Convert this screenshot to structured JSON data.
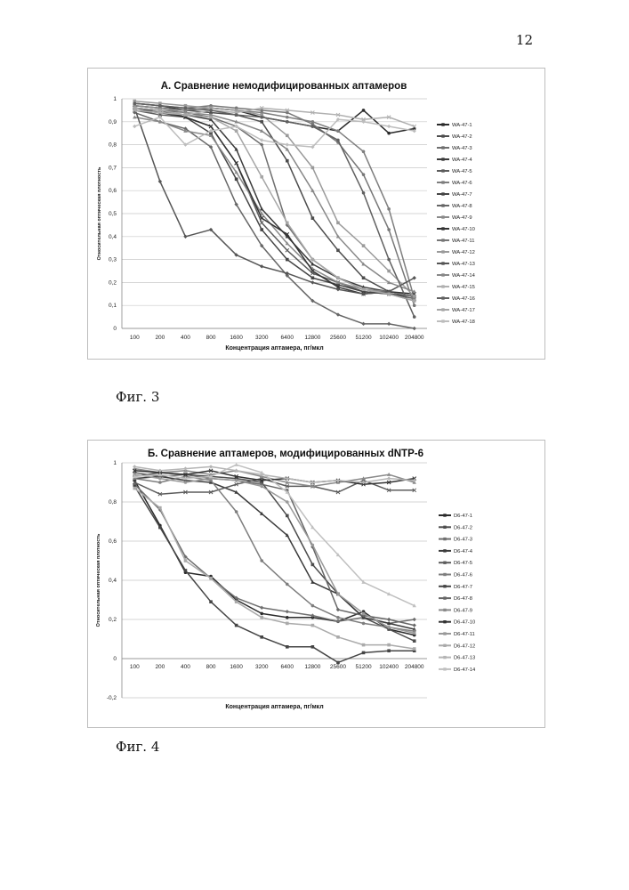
{
  "page_number": "12",
  "figures": [
    {
      "caption": "Фиг. 3"
    },
    {
      "caption": "Фиг. 4"
    }
  ],
  "chart_data": [
    {
      "type": "line",
      "title": "А. Сравнение немодифицированных аптамеров",
      "xlabel": "Концентрация аптамера, пг/мкл",
      "ylabel": "Относительная оптическая плотность",
      "x_scale": "log2",
      "ylim": [
        0,
        1
      ],
      "yticks": [
        "0",
        "0,1",
        "0,2",
        "0,3",
        "0,4",
        "0,5",
        "0,6",
        "0,7",
        "0,8",
        "0,9",
        "1"
      ],
      "ytick_values": [
        0,
        0.1,
        0.2,
        0.3,
        0.4,
        0.5,
        0.6,
        0.7,
        0.8,
        0.9,
        1
      ],
      "categories": [
        "100",
        "200",
        "400",
        "800",
        "1600",
        "3200",
        "6400",
        "12800",
        "25600",
        "51200",
        "102400",
        "204800"
      ],
      "grid": true,
      "legend_position": "right",
      "colors": [
        "#2a2a2a",
        "#4d4d4d",
        "#6f6f6f",
        "#3b3b3b",
        "#5c5c5c",
        "#7e7e7e",
        "#454545",
        "#666666",
        "#8a8a8a",
        "#333333",
        "#777777",
        "#9a9a9a",
        "#555555",
        "#888888",
        "#b0b0b0",
        "#606060",
        "#a6a6a6",
        "#bdbdbd"
      ],
      "series": [
        {
          "name": "WA-47-1",
          "values": [
            0.98,
            0.97,
            0.95,
            0.96,
            0.95,
            0.92,
            0.9,
            0.88,
            0.86,
            0.95,
            0.85,
            0.87
          ]
        },
        {
          "name": "WA-47-2",
          "values": [
            0.97,
            0.96,
            0.95,
            0.94,
            0.93,
            0.9,
            0.73,
            0.48,
            0.34,
            0.22,
            0.16,
            0.14
          ]
        },
        {
          "name": "WA-47-3",
          "values": [
            0.96,
            0.95,
            0.94,
            0.92,
            0.88,
            0.8,
            0.45,
            0.3,
            0.22,
            0.17,
            0.15,
            0.12
          ]
        },
        {
          "name": "WA-47-4",
          "values": [
            0.95,
            0.94,
            0.93,
            0.91,
            0.78,
            0.52,
            0.4,
            0.28,
            0.22,
            0.18,
            0.16,
            0.14
          ]
        },
        {
          "name": "WA-47-5",
          "values": [
            0.95,
            0.93,
            0.92,
            0.88,
            0.72,
            0.46,
            0.34,
            0.24,
            0.2,
            0.16,
            0.15,
            0.13
          ]
        },
        {
          "name": "WA-47-6",
          "values": [
            0.97,
            0.96,
            0.95,
            0.96,
            0.95,
            0.94,
            0.92,
            0.9,
            0.86,
            0.77,
            0.52,
            0.13
          ]
        },
        {
          "name": "WA-47-7",
          "values": [
            0.96,
            0.94,
            0.92,
            0.85,
            0.65,
            0.43,
            0.3,
            0.22,
            0.19,
            0.16,
            0.15,
            0.14
          ]
        },
        {
          "name": "WA-47-8",
          "values": [
            0.94,
            0.9,
            0.87,
            0.79,
            0.54,
            0.36,
            0.23,
            0.12,
            0.06,
            0.02,
            0.02,
            0.0
          ]
        },
        {
          "name": "WA-47-9",
          "values": [
            0.92,
            0.9,
            0.86,
            0.84,
            0.68,
            0.5,
            0.37,
            0.26,
            0.2,
            0.17,
            0.16,
            0.14
          ]
        },
        {
          "name": "WA-47-10",
          "values": [
            0.96,
            0.95,
            0.92,
            0.88,
            0.72,
            0.48,
            0.41,
            0.25,
            0.18,
            0.15,
            0.16,
            0.15
          ]
        },
        {
          "name": "WA-47-11",
          "values": [
            0.98,
            0.97,
            0.96,
            0.97,
            0.96,
            0.95,
            0.94,
            0.89,
            0.81,
            0.67,
            0.43,
            0.1
          ]
        },
        {
          "name": "WA-47-12",
          "values": [
            0.99,
            0.98,
            0.97,
            0.96,
            0.95,
            0.93,
            0.84,
            0.7,
            0.46,
            0.36,
            0.25,
            0.14
          ]
        },
        {
          "name": "WA-47-13",
          "values": [
            0.96,
            0.64,
            0.4,
            0.43,
            0.32,
            0.27,
            0.24,
            0.2,
            0.17,
            0.15,
            0.16,
            0.22
          ]
        },
        {
          "name": "WA-47-14",
          "values": [
            0.97,
            0.96,
            0.94,
            0.93,
            0.9,
            0.86,
            0.78,
            0.6,
            0.4,
            0.28,
            0.2,
            0.16
          ]
        },
        {
          "name": "WA-47-15",
          "values": [
            0.95,
            0.94,
            0.93,
            0.95,
            0.94,
            0.96,
            0.95,
            0.94,
            0.93,
            0.91,
            0.92,
            0.88
          ]
        },
        {
          "name": "WA-47-16",
          "values": [
            0.98,
            0.97,
            0.96,
            0.95,
            0.93,
            0.92,
            0.9,
            0.88,
            0.82,
            0.59,
            0.3,
            0.05
          ]
        },
        {
          "name": "WA-47-17",
          "values": [
            0.96,
            0.95,
            0.93,
            0.92,
            0.86,
            0.66,
            0.46,
            0.3,
            0.22,
            0.17,
            0.15,
            0.12
          ]
        },
        {
          "name": "WA-47-18",
          "values": [
            0.88,
            0.92,
            0.8,
            0.86,
            0.88,
            0.82,
            0.8,
            0.79,
            0.91,
            0.9,
            0.88,
            0.86
          ]
        }
      ]
    },
    {
      "type": "line",
      "title": "Б. Сравнение аптамеров, модифицированных dNTP-6",
      "xlabel": "Концентрация аптамера, пг/мкл",
      "ylabel": "Относительная оптическая плотность",
      "x_scale": "log2",
      "ylim": [
        -0.2,
        1
      ],
      "yticks": [
        "-0,2",
        "0",
        "0,2",
        "0,4",
        "0,6",
        "0,8",
        "1"
      ],
      "ytick_values": [
        -0.2,
        0,
        0.2,
        0.4,
        0.6,
        0.8,
        1
      ],
      "categories": [
        "100",
        "200",
        "400",
        "800",
        "1600",
        "3200",
        "6400",
        "12800",
        "25600",
        "51200",
        "102400",
        "204800"
      ],
      "grid": true,
      "legend_position": "right",
      "colors": [
        "#2a2a2a",
        "#4d4d4d",
        "#6f6f6f",
        "#3b3b3b",
        "#5c5c5c",
        "#7e7e7e",
        "#454545",
        "#666666",
        "#8a8a8a",
        "#333333",
        "#999999",
        "#aaaaaa",
        "#b5b5b5",
        "#c0c0c0"
      ],
      "series": [
        {
          "name": "D6-47-1",
          "values": [
            0.91,
            0.68,
            0.44,
            0.42,
            0.3,
            0.23,
            0.21,
            0.21,
            0.19,
            0.24,
            0.15,
            0.12
          ]
        },
        {
          "name": "D6-47-2",
          "values": [
            0.93,
            0.95,
            0.94,
            0.93,
            0.92,
            0.9,
            0.73,
            0.48,
            0.33,
            0.21,
            0.15,
            0.09
          ]
        },
        {
          "name": "D6-47-3",
          "values": [
            0.89,
            0.76,
            0.52,
            0.41,
            0.31,
            0.26,
            0.24,
            0.22,
            0.19,
            0.21,
            0.18,
            0.2
          ]
        },
        {
          "name": "D6-47-4",
          "values": [
            0.92,
            0.93,
            0.91,
            0.9,
            0.85,
            0.74,
            0.63,
            0.39,
            0.33,
            0.21,
            0.18,
            0.15
          ]
        },
        {
          "name": "D6-47-5",
          "values": [
            0.9,
            0.84,
            0.85,
            0.85,
            0.89,
            0.92,
            0.88,
            0.88,
            0.85,
            0.91,
            0.86,
            0.86
          ]
        },
        {
          "name": "D6-47-6",
          "values": [
            0.92,
            0.9,
            0.93,
            0.91,
            0.75,
            0.5,
            0.38,
            0.27,
            0.21,
            0.18,
            0.16,
            0.14
          ]
        },
        {
          "name": "D6-47-7",
          "values": [
            0.88,
            0.67,
            0.45,
            0.29,
            0.17,
            0.11,
            0.06,
            0.06,
            -0.02,
            0.03,
            0.04,
            0.04
          ]
        },
        {
          "name": "D6-47-8",
          "values": [
            0.95,
            0.93,
            0.94,
            0.92,
            0.91,
            0.89,
            0.86,
            0.57,
            0.25,
            0.22,
            0.2,
            0.17
          ]
        },
        {
          "name": "D6-47-9",
          "values": [
            0.97,
            0.95,
            0.96,
            0.94,
            0.96,
            0.93,
            0.9,
            0.88,
            0.9,
            0.92,
            0.94,
            0.9
          ]
        },
        {
          "name": "D6-47-10",
          "values": [
            0.96,
            0.95,
            0.94,
            0.96,
            0.93,
            0.91,
            0.92,
            0.9,
            0.91,
            0.89,
            0.9,
            0.92
          ]
        },
        {
          "name": "D6-47-11",
          "values": [
            0.94,
            0.92,
            0.9,
            0.92,
            0.91,
            0.88,
            0.8,
            0.58,
            0.33,
            0.23,
            0.16,
            0.13
          ]
        },
        {
          "name": "D6-47-12",
          "values": [
            0.87,
            0.77,
            0.5,
            0.41,
            0.29,
            0.21,
            0.18,
            0.17,
            0.11,
            0.07,
            0.07,
            0.05
          ]
        },
        {
          "name": "D6-47-13",
          "values": [
            0.98,
            0.96,
            0.97,
            0.98,
            0.96,
            0.94,
            0.92,
            0.9,
            0.91,
            0.9,
            0.92,
            0.91
          ]
        },
        {
          "name": "D6-47-14",
          "values": [
            0.93,
            0.94,
            0.92,
            0.93,
            0.99,
            0.95,
            0.85,
            0.67,
            0.53,
            0.39,
            0.33,
            0.27
          ]
        }
      ]
    }
  ]
}
